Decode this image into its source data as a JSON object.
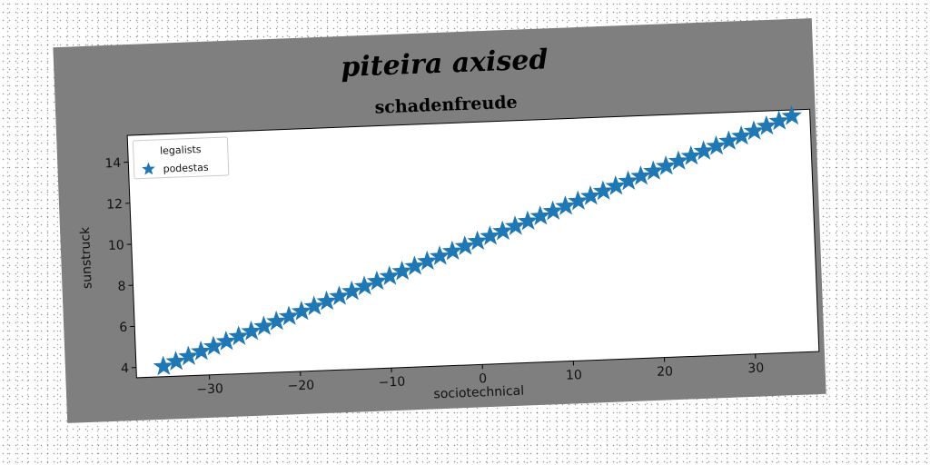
{
  "figure": {
    "suptitle": "piteira axised",
    "background": "#7f7f7f"
  },
  "chart_data": {
    "type": "scatter",
    "title": "schadenfreude",
    "xlabel": "sociotechnical",
    "ylabel": "sunstruck",
    "xlim": [
      -38,
      37
    ],
    "ylim": [
      3.5,
      15.3
    ],
    "xticks": [
      -30,
      -20,
      -10,
      0,
      10,
      20,
      30
    ],
    "xtick_labels": [
      "−30",
      "−20",
      "−10",
      "0",
      "10",
      "20",
      "30"
    ],
    "yticks": [
      4,
      6,
      8,
      10,
      12,
      14
    ],
    "ytick_labels": [
      "4",
      "6",
      "8",
      "10",
      "12",
      "14"
    ],
    "grid": false,
    "legend": {
      "title": "legalists",
      "placement": "upper left",
      "entries": [
        "podestas"
      ]
    },
    "series": [
      {
        "name": "podestas",
        "marker": "star",
        "color": "#1f77b4",
        "x": [
          -35.0,
          -33.6,
          -32.2,
          -30.8,
          -29.4,
          -28.0,
          -26.6,
          -25.2,
          -23.8,
          -22.4,
          -21.0,
          -19.6,
          -18.2,
          -16.8,
          -15.4,
          -14.0,
          -12.6,
          -11.2,
          -9.8,
          -8.4,
          -7.0,
          -5.6,
          -4.2,
          -2.8,
          -1.4,
          0.0,
          1.4,
          2.8,
          4.2,
          5.6,
          7.0,
          8.4,
          9.8,
          11.2,
          12.6,
          14.0,
          15.4,
          16.8,
          18.2,
          19.6,
          21.0,
          22.4,
          23.8,
          25.2,
          26.6,
          28.0,
          29.4,
          30.8,
          32.2,
          33.6,
          35.0
        ],
        "y": [
          4.0,
          4.22,
          4.44,
          4.66,
          4.88,
          5.1,
          5.32,
          5.54,
          5.76,
          5.98,
          6.2,
          6.42,
          6.64,
          6.86,
          7.08,
          7.3,
          7.52,
          7.74,
          7.96,
          8.18,
          8.4,
          8.62,
          8.84,
          9.06,
          9.28,
          9.5,
          9.72,
          9.94,
          10.16,
          10.38,
          10.6,
          10.82,
          11.04,
          11.26,
          11.48,
          11.7,
          11.92,
          12.14,
          12.36,
          12.58,
          12.8,
          13.02,
          13.24,
          13.46,
          13.68,
          13.9,
          14.12,
          14.34,
          14.56,
          14.78,
          15.0
        ]
      }
    ]
  }
}
